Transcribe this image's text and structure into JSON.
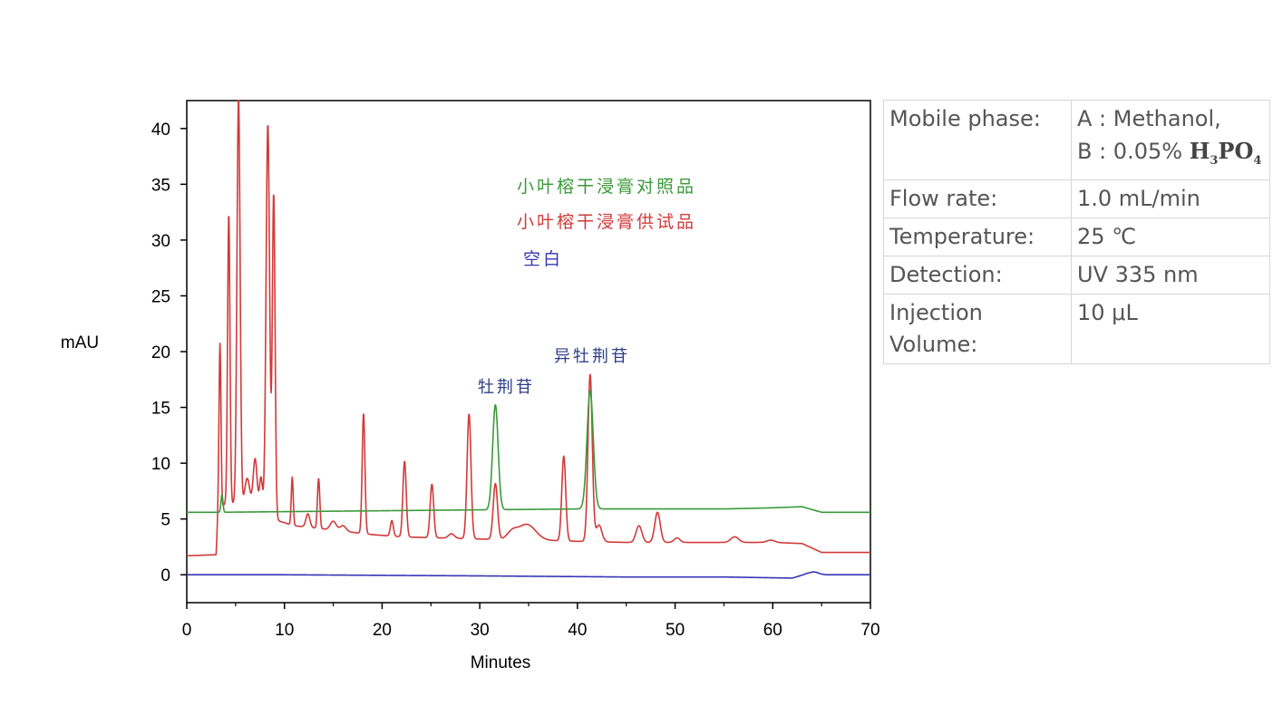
{
  "chart_data": {
    "type": "line",
    "title": "",
    "xlabel": "Minutes",
    "ylabel": "mAU",
    "xlim": [
      0,
      70
    ],
    "ylim": [
      -2.5,
      42.5
    ],
    "xticks": [
      0,
      10,
      20,
      30,
      40,
      50,
      60,
      70
    ],
    "yticks": [
      0,
      5,
      10,
      15,
      20,
      25,
      30,
      35,
      40
    ],
    "grid": false,
    "legend": {
      "placement": "upper-center"
    },
    "series": [
      {
        "name": "小叶榕干浸膏对照品",
        "color": "#3a9a3a",
        "baseline": [
          [
            0,
            5.6
          ],
          [
            3.2,
            5.6
          ],
          [
            40,
            5.9
          ],
          [
            44,
            5.9
          ],
          [
            55,
            5.9
          ],
          [
            60,
            6.0
          ],
          [
            63,
            6.1
          ],
          [
            65,
            5.6
          ],
          [
            70,
            5.6
          ]
        ],
        "peaks": [
          [
            3.6,
            1.6,
            0.1
          ],
          [
            31.6,
            9.4,
            0.28
          ],
          [
            41.3,
            10.6,
            0.32
          ]
        ]
      },
      {
        "name": "小叶榕干浸膏供试品",
        "color": "#d23a3a",
        "baseline": [
          [
            0,
            1.7
          ],
          [
            3.0,
            1.8
          ],
          [
            3.2,
            5.5
          ],
          [
            4,
            6.5
          ],
          [
            6,
            6.2
          ],
          [
            8,
            5.6
          ],
          [
            9.5,
            4.8
          ],
          [
            11,
            4.4
          ],
          [
            14,
            4.1
          ],
          [
            17,
            3.8
          ],
          [
            19,
            3.6
          ],
          [
            22,
            3.4
          ],
          [
            26,
            3.3
          ],
          [
            30,
            3.2
          ],
          [
            36,
            3.1
          ],
          [
            40,
            3.0
          ],
          [
            45,
            2.9
          ],
          [
            50,
            2.9
          ],
          [
            55,
            2.9
          ],
          [
            60,
            2.9
          ],
          [
            63,
            2.8
          ],
          [
            65,
            2.0
          ],
          [
            70,
            2.0
          ]
        ],
        "peaks": [
          [
            3.4,
            15.0,
            0.1
          ],
          [
            4.3,
            26.0,
            0.12
          ],
          [
            5.3,
            36.5,
            0.16
          ],
          [
            6.2,
            2.5,
            0.25
          ],
          [
            7.0,
            4.5,
            0.2
          ],
          [
            7.6,
            3.0,
            0.15
          ],
          [
            8.3,
            35.0,
            0.18
          ],
          [
            8.9,
            29.0,
            0.14
          ],
          [
            10.8,
            4.3,
            0.1
          ],
          [
            12.4,
            1.2,
            0.2
          ],
          [
            13.5,
            4.5,
            0.12
          ],
          [
            15.0,
            0.8,
            0.3
          ],
          [
            16.0,
            0.5,
            0.3
          ],
          [
            18.1,
            10.8,
            0.14
          ],
          [
            21.0,
            1.4,
            0.15
          ],
          [
            22.3,
            6.8,
            0.17
          ],
          [
            25.1,
            4.8,
            0.18
          ],
          [
            27.1,
            0.4,
            0.3
          ],
          [
            28.9,
            11.2,
            0.2
          ],
          [
            31.6,
            5.0,
            0.22
          ],
          [
            33.3,
            0.6,
            0.5
          ],
          [
            34.8,
            1.4,
            0.9
          ],
          [
            38.6,
            7.6,
            0.2
          ],
          [
            41.3,
            15.0,
            0.22
          ],
          [
            42.2,
            1.5,
            0.3
          ],
          [
            46.3,
            1.5,
            0.3
          ],
          [
            48.2,
            2.7,
            0.28
          ],
          [
            50.2,
            0.4,
            0.3
          ],
          [
            56.1,
            0.5,
            0.4
          ],
          [
            59.8,
            0.2,
            0.4
          ]
        ]
      },
      {
        "name": "空白",
        "color": "#3535b5",
        "baseline": [
          [
            0,
            0.0
          ],
          [
            10,
            0.0
          ],
          [
            30,
            -0.1
          ],
          [
            45,
            -0.2
          ],
          [
            55,
            -0.2
          ],
          [
            62,
            -0.3
          ],
          [
            63.5,
            0.1
          ],
          [
            64.5,
            0.1
          ],
          [
            65.5,
            0.0
          ],
          [
            70,
            0.0
          ]
        ],
        "peaks": [
          [
            64.2,
            0.15,
            0.4
          ]
        ]
      }
    ],
    "annotations": [
      {
        "text": "牡荆苷",
        "x": 31.6
      },
      {
        "text": "异牡荆苷",
        "x": 41.3
      }
    ]
  },
  "conditions": [
    {
      "label": "Mobile phase:",
      "value_line1": "A : Methanol,",
      "value_line2_prefix": "B : 0.05% ",
      "formula": "H",
      "sub1": "3",
      "formula2": "PO",
      "sub2": "4"
    },
    {
      "label": "Flow rate:",
      "value": "1.0 mL/min"
    },
    {
      "label": "Temperature:",
      "value": "25 ℃"
    },
    {
      "label": "Detection:",
      "value": "UV 335 nm"
    },
    {
      "label": "Injection",
      "label_line2": "Volume:",
      "value": "10 μL"
    }
  ]
}
